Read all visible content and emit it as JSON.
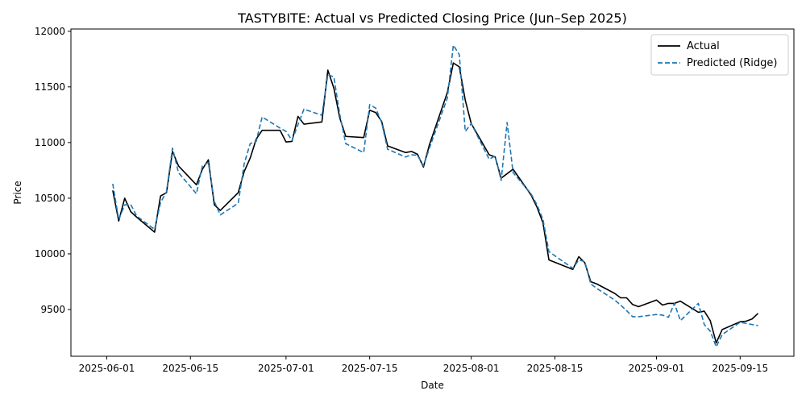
{
  "chart_data": {
    "type": "line",
    "title": "TASTYBITE: Actual vs Predicted Closing Price (Jun–Sep 2025)",
    "xlabel": "Date",
    "ylabel": "Price",
    "xlim": [
      "2025-05-26",
      "2025-09-24"
    ],
    "ylim": [
      9080,
      12020
    ],
    "x_ticks": [
      "2025-06-01",
      "2025-06-15",
      "2025-07-01",
      "2025-07-15",
      "2025-08-01",
      "2025-08-15",
      "2025-09-01",
      "2025-09-15"
    ],
    "y_ticks": [
      9500,
      10000,
      10500,
      11000,
      11500,
      12000
    ],
    "grid": false,
    "legend_position": "top-right",
    "series": [
      {
        "name": "Actual",
        "color": "#000000",
        "style": "solid",
        "points": [
          [
            "2025-06-02",
            10570
          ],
          [
            "2025-06-03",
            10295
          ],
          [
            "2025-06-04",
            10500
          ],
          [
            "2025-06-05",
            10380
          ],
          [
            "2025-06-06",
            10330
          ],
          [
            "2025-06-09",
            10195
          ],
          [
            "2025-06-10",
            10520
          ],
          [
            "2025-06-11",
            10550
          ],
          [
            "2025-06-12",
            10920
          ],
          [
            "2025-06-13",
            10790
          ],
          [
            "2025-06-16",
            10620
          ],
          [
            "2025-06-17",
            10760
          ],
          [
            "2025-06-18",
            10845
          ],
          [
            "2025-06-19",
            10440
          ],
          [
            "2025-06-20",
            10390
          ],
          [
            "2025-06-23",
            10550
          ],
          [
            "2025-06-24",
            10740
          ],
          [
            "2025-06-25",
            10860
          ],
          [
            "2025-06-26",
            11030
          ],
          [
            "2025-06-27",
            11110
          ],
          [
            "2025-06-30",
            11110
          ],
          [
            "2025-07-01",
            11005
          ],
          [
            "2025-07-02",
            11010
          ],
          [
            "2025-07-03",
            11235
          ],
          [
            "2025-07-04",
            11165
          ],
          [
            "2025-07-07",
            11185
          ],
          [
            "2025-07-08",
            11650
          ],
          [
            "2025-07-09",
            11490
          ],
          [
            "2025-07-10",
            11220
          ],
          [
            "2025-07-11",
            11055
          ],
          [
            "2025-07-14",
            11045
          ],
          [
            "2025-07-15",
            11290
          ],
          [
            "2025-07-16",
            11270
          ],
          [
            "2025-07-17",
            11190
          ],
          [
            "2025-07-18",
            10970
          ],
          [
            "2025-07-21",
            10910
          ],
          [
            "2025-07-22",
            10920
          ],
          [
            "2025-07-23",
            10895
          ],
          [
            "2025-07-24",
            10780
          ],
          [
            "2025-07-25",
            10980
          ],
          [
            "2025-07-28",
            11450
          ],
          [
            "2025-07-29",
            11715
          ],
          [
            "2025-07-30",
            11680
          ],
          [
            "2025-07-31",
            11380
          ],
          [
            "2025-08-01",
            11170
          ],
          [
            "2025-08-04",
            10890
          ],
          [
            "2025-08-05",
            10870
          ],
          [
            "2025-08-06",
            10680
          ],
          [
            "2025-08-08",
            10760
          ],
          [
            "2025-08-11",
            10530
          ],
          [
            "2025-08-12",
            10420
          ],
          [
            "2025-08-13",
            10280
          ],
          [
            "2025-08-14",
            9945
          ],
          [
            "2025-08-18",
            9860
          ],
          [
            "2025-08-19",
            9975
          ],
          [
            "2025-08-20",
            9920
          ],
          [
            "2025-08-21",
            9750
          ],
          [
            "2025-08-22",
            9730
          ],
          [
            "2025-08-25",
            9645
          ],
          [
            "2025-08-26",
            9605
          ],
          [
            "2025-08-27",
            9605
          ],
          [
            "2025-08-28",
            9545
          ],
          [
            "2025-08-29",
            9525
          ],
          [
            "2025-09-01",
            9585
          ],
          [
            "2025-09-02",
            9540
          ],
          [
            "2025-09-03",
            9555
          ],
          [
            "2025-09-04",
            9555
          ],
          [
            "2025-09-05",
            9575
          ],
          [
            "2025-09-08",
            9475
          ],
          [
            "2025-09-09",
            9485
          ],
          [
            "2025-09-10",
            9400
          ],
          [
            "2025-09-11",
            9200
          ],
          [
            "2025-09-12",
            9320
          ],
          [
            "2025-09-15",
            9390
          ],
          [
            "2025-09-16",
            9395
          ],
          [
            "2025-09-17",
            9415
          ],
          [
            "2025-09-18",
            9465
          ]
        ]
      },
      {
        "name": "Predicted (Ridge)",
        "color": "#1f77b4",
        "style": "dashed",
        "points": [
          [
            "2025-06-02",
            10630
          ],
          [
            "2025-06-03",
            10310
          ],
          [
            "2025-06-04",
            10440
          ],
          [
            "2025-06-05",
            10445
          ],
          [
            "2025-06-06",
            10340
          ],
          [
            "2025-06-09",
            10220
          ],
          [
            "2025-06-10",
            10460
          ],
          [
            "2025-06-11",
            10560
          ],
          [
            "2025-06-12",
            10950
          ],
          [
            "2025-06-13",
            10730
          ],
          [
            "2025-06-16",
            10540
          ],
          [
            "2025-06-17",
            10790
          ],
          [
            "2025-06-18",
            10820
          ],
          [
            "2025-06-19",
            10470
          ],
          [
            "2025-06-20",
            10350
          ],
          [
            "2025-06-23",
            10455
          ],
          [
            "2025-06-24",
            10810
          ],
          [
            "2025-06-25",
            10990
          ],
          [
            "2025-06-26",
            11010
          ],
          [
            "2025-06-27",
            11230
          ],
          [
            "2025-06-30",
            11130
          ],
          [
            "2025-07-01",
            11100
          ],
          [
            "2025-07-02",
            11020
          ],
          [
            "2025-07-03",
            11160
          ],
          [
            "2025-07-04",
            11300
          ],
          [
            "2025-07-07",
            11245
          ],
          [
            "2025-07-08",
            11610
          ],
          [
            "2025-07-09",
            11590
          ],
          [
            "2025-07-10",
            11250
          ],
          [
            "2025-07-11",
            10990
          ],
          [
            "2025-07-14",
            10910
          ],
          [
            "2025-07-15",
            11340
          ],
          [
            "2025-07-16",
            11310
          ],
          [
            "2025-07-17",
            11180
          ],
          [
            "2025-07-18",
            10940
          ],
          [
            "2025-07-21",
            10870
          ],
          [
            "2025-07-22",
            10890
          ],
          [
            "2025-07-23",
            10885
          ],
          [
            "2025-07-24",
            10790
          ],
          [
            "2025-07-25",
            10950
          ],
          [
            "2025-07-28",
            11400
          ],
          [
            "2025-07-29",
            11875
          ],
          [
            "2025-07-30",
            11790
          ],
          [
            "2025-07-31",
            11100
          ],
          [
            "2025-08-01",
            11170
          ],
          [
            "2025-08-04",
            10850
          ],
          [
            "2025-08-05",
            10880
          ],
          [
            "2025-08-06",
            10660
          ],
          [
            "2025-08-07",
            11180
          ],
          [
            "2025-08-08",
            10730
          ],
          [
            "2025-08-11",
            10540
          ],
          [
            "2025-08-12",
            10440
          ],
          [
            "2025-08-13",
            10310
          ],
          [
            "2025-08-14",
            10020
          ],
          [
            "2025-08-18",
            9870
          ],
          [
            "2025-08-19",
            9945
          ],
          [
            "2025-08-20",
            9930
          ],
          [
            "2025-08-21",
            9730
          ],
          [
            "2025-08-22",
            9690
          ],
          [
            "2025-08-25",
            9585
          ],
          [
            "2025-08-26",
            9540
          ],
          [
            "2025-08-27",
            9490
          ],
          [
            "2025-08-28",
            9435
          ],
          [
            "2025-08-29",
            9435
          ],
          [
            "2025-09-01",
            9455
          ],
          [
            "2025-09-02",
            9450
          ],
          [
            "2025-09-03",
            9430
          ],
          [
            "2025-09-04",
            9555
          ],
          [
            "2025-09-05",
            9400
          ],
          [
            "2025-09-08",
            9555
          ],
          [
            "2025-09-09",
            9365
          ],
          [
            "2025-09-10",
            9305
          ],
          [
            "2025-09-11",
            9165
          ],
          [
            "2025-09-12",
            9275
          ],
          [
            "2025-09-15",
            9385
          ],
          [
            "2025-09-16",
            9375
          ],
          [
            "2025-09-17",
            9365
          ],
          [
            "2025-09-18",
            9355
          ]
        ]
      }
    ]
  }
}
